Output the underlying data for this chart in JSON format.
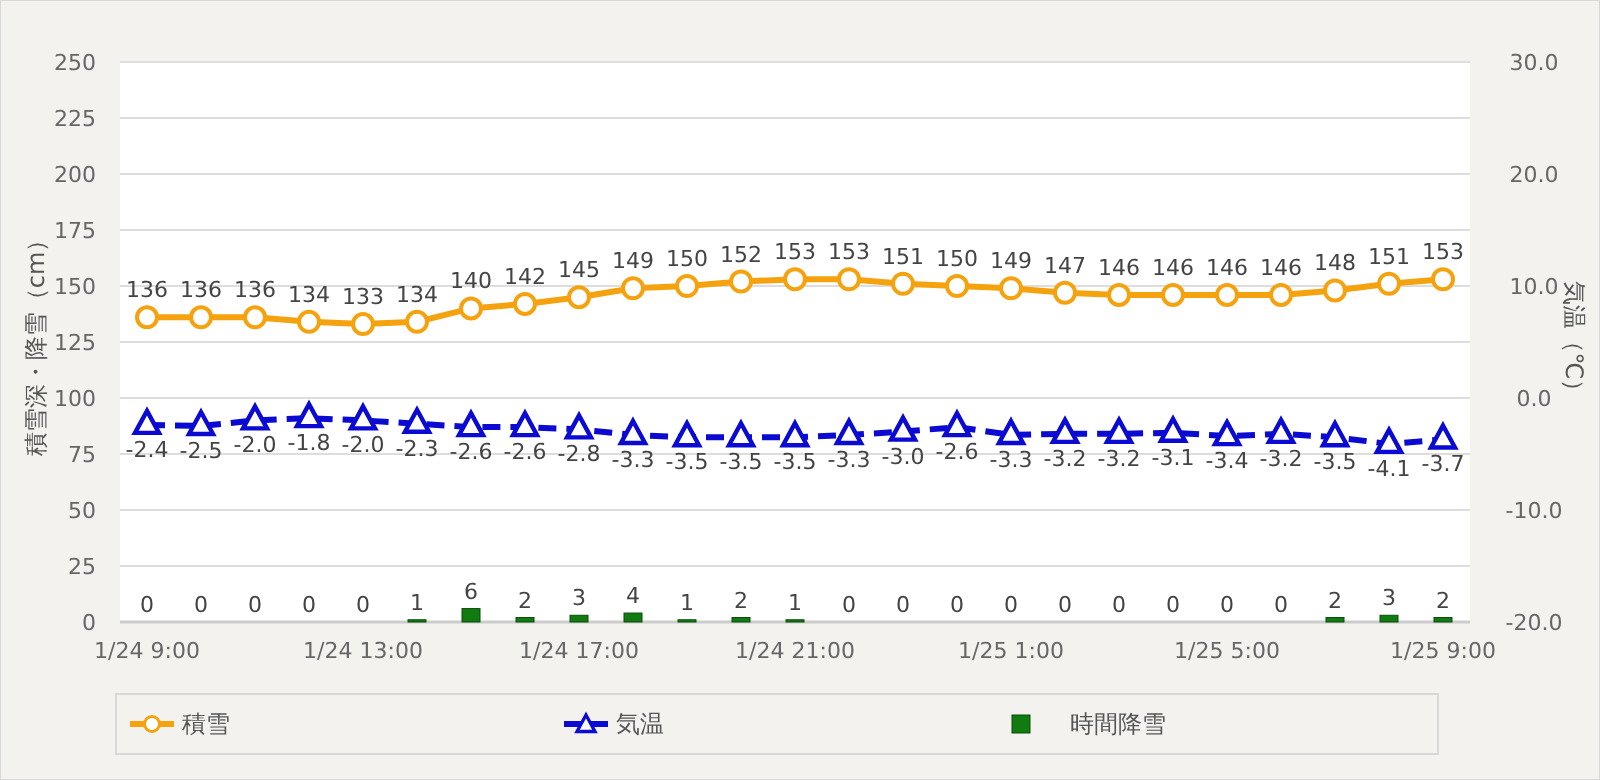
{
  "chart_data": {
    "type": "line",
    "categories": [
      "1/24 9:00",
      null,
      null,
      null,
      "1/24 13:00",
      null,
      null,
      null,
      "1/24 17:00",
      null,
      null,
      null,
      "1/24 21:00",
      null,
      null,
      null,
      "1/25 1:00",
      null,
      null,
      null,
      "1/25 5:00",
      null,
      null,
      null,
      "1/25 9:00"
    ],
    "ylabel": "積雪深・降雪（cm）",
    "y2label": "気温（℃）",
    "ylim": [
      0,
      250
    ],
    "yticks": [
      0,
      25,
      50,
      75,
      100,
      125,
      150,
      175,
      200,
      225,
      250
    ],
    "y2lim": [
      -20,
      30
    ],
    "y2ticks": [
      {
        "value": -20,
        "label": "-20.0"
      },
      {
        "value": -10,
        "label": "-10.0"
      },
      {
        "value": 0,
        "label": "0.0"
      },
      {
        "value": 10,
        "label": "10.0"
      },
      {
        "value": 20,
        "label": "20.0"
      },
      {
        "value": 30,
        "label": "30.0"
      }
    ],
    "grid": "y",
    "legend": "bottom",
    "data_labels": true,
    "series": [
      {
        "name": "積雪",
        "color": "#f5a20f",
        "marker": "circle",
        "line_style": "solid",
        "values": [
          136,
          136,
          136,
          134,
          133,
          134,
          140,
          142,
          145,
          149,
          150,
          152,
          153,
          153,
          151,
          150,
          149,
          147,
          146,
          146,
          146,
          146,
          148,
          151,
          153
        ]
      },
      {
        "name": "気温",
        "axis": "y2",
        "color": "#0a0ad2",
        "marker": "triangle",
        "line_style": "dashed",
        "values": [
          -2.4,
          -2.5,
          -2.0,
          -1.8,
          -2.0,
          -2.3,
          -2.6,
          -2.6,
          -2.8,
          -3.3,
          -3.5,
          -3.5,
          -3.5,
          -3.3,
          -3.0,
          -2.6,
          -3.3,
          -3.2,
          -3.2,
          -3.1,
          -3.4,
          -3.2,
          -3.5,
          -4.1,
          -3.7
        ],
        "value_labels": [
          "-2.4",
          "-2.5",
          "-2.0",
          "-1.8",
          "-2.0",
          "-2.3",
          "-2.6",
          "-2.6",
          "-2.8",
          "-3.3",
          "-3.5",
          "-3.5",
          "-3.5",
          "-3.3",
          "-3.0",
          "-2.6",
          "-3.3",
          "-3.2",
          "-3.2",
          "-3.1",
          "-3.4",
          "-3.2",
          "-3.5",
          "-4.1",
          "-3.7"
        ]
      },
      {
        "name": "時間降雪",
        "type": "bar",
        "color": "#117a11",
        "values": [
          0,
          0,
          0,
          0,
          0,
          1,
          6,
          2,
          3,
          4,
          1,
          2,
          1,
          0,
          0,
          0,
          0,
          0,
          0,
          0,
          0,
          0,
          2,
          3,
          2
        ]
      }
    ]
  }
}
